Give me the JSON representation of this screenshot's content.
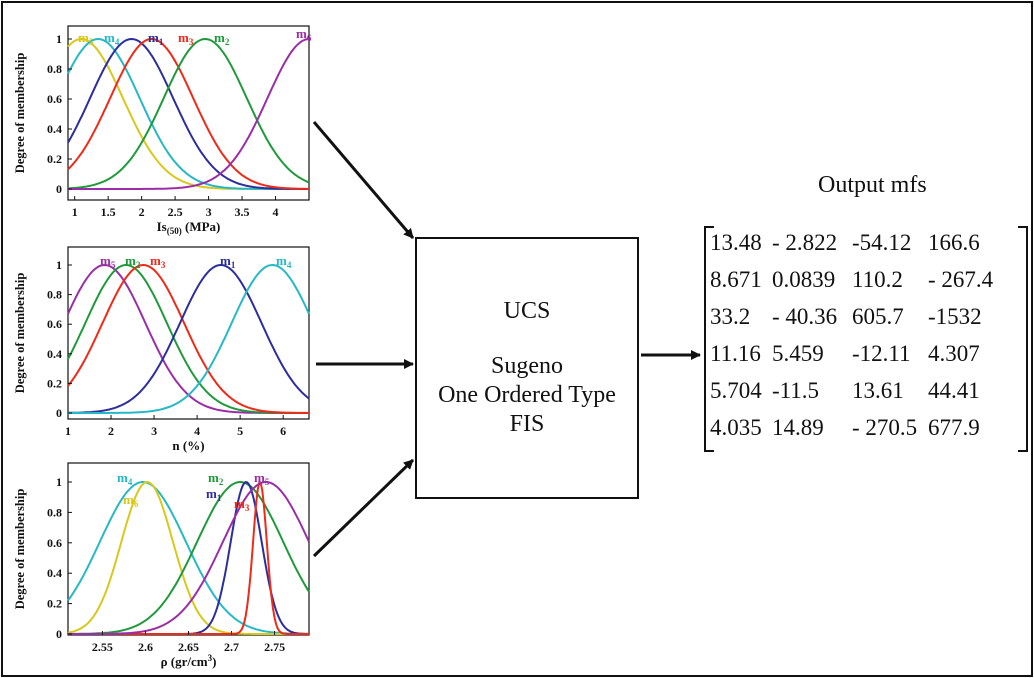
{
  "panels": [
    {
      "ylabel": "Degree of membership",
      "xlabel": "Is(50) (MPa)",
      "xlabel_main": "Is",
      "xlabel_sub": "(50)",
      "xlabel_rest": " (MPa)",
      "xlim": [
        0.9,
        4.5
      ],
      "x_ticks": [
        "1",
        "1.5",
        "2",
        "2.5",
        "3",
        "3.5",
        "4"
      ],
      "y_ticks": [
        "0",
        "0.2",
        "0.4",
        "0.6",
        "0.8",
        "1"
      ],
      "mfs": [
        {
          "label": "m",
          "sub": "5",
          "color": "#d8c81c",
          "center": 1.1,
          "sigma": 0.62
        },
        {
          "label": "m",
          "sub": "4",
          "color": "#27b8c8",
          "center": 1.35,
          "sigma": 0.62
        },
        {
          "label": "m",
          "sub": "1",
          "color": "#2b2e9c",
          "center": 1.85,
          "sigma": 0.62
        },
        {
          "label": "m",
          "sub": "3",
          "color": "#ee2a18",
          "center": 2.15,
          "sigma": 0.62
        },
        {
          "label": "m",
          "sub": "2",
          "color": "#1f9a3a",
          "center": 2.95,
          "sigma": 0.62
        },
        {
          "label": "m",
          "sub": "6",
          "color": "#9a2ea6",
          "center": 4.5,
          "sigma": 0.62
        }
      ]
    },
    {
      "ylabel": "Degree of membership",
      "xlabel": "n (%)",
      "xlim": [
        1,
        6.6
      ],
      "x_ticks": [
        "1",
        "2",
        "3",
        "4",
        "5",
        "6"
      ],
      "y_ticks": [
        "0",
        "0.2",
        "0.4",
        "0.6",
        "0.8",
        "1"
      ],
      "mfs": [
        {
          "label": "m",
          "sub": "5",
          "color": "#9a2ea6",
          "center": 1.85,
          "sigma": 0.95
        },
        {
          "label": "m",
          "sub": "2",
          "color": "#1f9a3a",
          "center": 2.35,
          "sigma": 0.95
        },
        {
          "label": "m",
          "sub": "3",
          "color": "#ee2a18",
          "center": 2.75,
          "sigma": 0.95
        },
        {
          "label": "m",
          "sub": "1",
          "color": "#2b2e9c",
          "center": 4.55,
          "sigma": 0.95
        },
        {
          "label": "m",
          "sub": "4",
          "color": "#27b8c8",
          "center": 5.75,
          "sigma": 0.95
        }
      ]
    },
    {
      "ylabel": "Degree of membership",
      "xlabel": "ρ (gr/cm3)",
      "xlabel_main": "ρ (gr/cm",
      "xlabel_sup": "3",
      "xlabel_rest": ")",
      "xlim": [
        2.51,
        2.79
      ],
      "x_ticks": [
        "2.55",
        "2.6",
        "2.65",
        "2.7",
        "2.75"
      ],
      "y_ticks": [
        "0",
        "0.2",
        "0.4",
        "0.6",
        "0.8",
        "1"
      ],
      "mfs": [
        {
          "label": "m",
          "sub": "4",
          "color": "#27b8c8",
          "center": 2.597,
          "sigma": 0.05
        },
        {
          "label": "m",
          "sub": "6",
          "color": "#d8c81c",
          "center": 2.602,
          "sigma": 0.03
        },
        {
          "label": "m",
          "sub": "2",
          "color": "#1f9a3a",
          "center": 2.71,
          "sigma": 0.05
        },
        {
          "label": "m",
          "sub": "1",
          "color": "#2b2e9c",
          "center": 2.717,
          "sigma": 0.018
        },
        {
          "label": "m",
          "sub": "3",
          "color": "#ee2a18",
          "center": 2.733,
          "sigma": 0.008
        },
        {
          "label": "m",
          "sub": "5",
          "color": "#9a2ea6",
          "center": 2.74,
          "sigma": 0.05
        }
      ]
    }
  ],
  "fis_box": {
    "line1": "UCS",
    "line2": "Sugeno",
    "line3": "One Ordered Type",
    "line4": "FIS"
  },
  "output": {
    "title": "Output mfs",
    "matrix": [
      [
        "13.48",
        "- 2.822",
        "-54.12",
        "166.6"
      ],
      [
        "8.671",
        "0.0839",
        "110.2",
        "- 267.4"
      ],
      [
        "33.2",
        "- 40.36",
        "605.7",
        "-1532"
      ],
      [
        "11.16",
        "5.459",
        "-12.11",
        "4.307"
      ],
      [
        "5.704",
        "-11.5",
        "13.61",
        "44.41"
      ],
      [
        "4.035",
        "14.89",
        "- 270.5",
        "677.9"
      ]
    ]
  },
  "colors": {
    "stroke": "#111111"
  }
}
